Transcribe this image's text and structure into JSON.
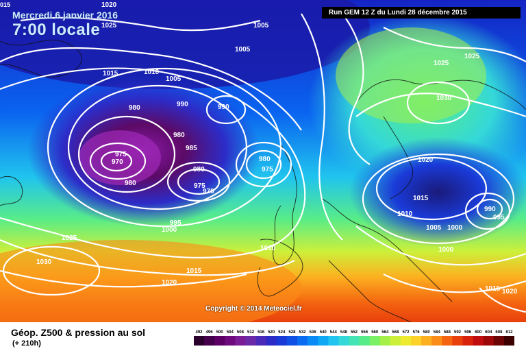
{
  "header": {
    "date": "Mercredi 6 janvier 2016",
    "time": "7:00 locale",
    "run": "Run GEM 12 Z du Lundi 28 décembre 2015",
    "corner_label": "015"
  },
  "footer": {
    "title": "Géop. Z500 & pression au sol",
    "forecast": "(+ 210h)",
    "copyright": "Copyright © 2014 Meteociel.fr"
  },
  "scale": {
    "values": [
      "492",
      "496",
      "500",
      "504",
      "508",
      "512",
      "516",
      "520",
      "524",
      "528",
      "532",
      "536",
      "540",
      "544",
      "548",
      "552",
      "556",
      "560",
      "564",
      "568",
      "572",
      "576",
      "580",
      "584",
      "588",
      "592",
      "596",
      "600",
      "604",
      "608",
      "612"
    ],
    "colors": [
      "#2b002b",
      "#44004a",
      "#5c0066",
      "#6e0a7d",
      "#7a1c95",
      "#6a2aa8",
      "#4a2ab8",
      "#2c2cc8",
      "#1a3ad8",
      "#1050e4",
      "#0a6cf0",
      "#0a8af4",
      "#10a8f4",
      "#20c4ee",
      "#34d8d8",
      "#44e4b4",
      "#58ec88",
      "#7af064",
      "#a4f048",
      "#ccf03a",
      "#eeea30",
      "#fcd228",
      "#fcb020",
      "#fc8c18",
      "#f46410",
      "#e8400c",
      "#d8220a",
      "#c00c0c",
      "#9c0808",
      "#6c0404",
      "#3c0000"
    ]
  },
  "isobars": [
    {
      "text": "1020"
    },
    {
      "text": "1025"
    },
    {
      "text": "1005"
    },
    {
      "text": "1005"
    },
    {
      "text": "1015"
    },
    {
      "text": "1010"
    },
    {
      "text": "1005"
    },
    {
      "text": "980"
    },
    {
      "text": "990"
    },
    {
      "text": "990"
    },
    {
      "text": "980"
    },
    {
      "text": "985"
    },
    {
      "text": "975"
    },
    {
      "text": "970"
    },
    {
      "text": "980"
    },
    {
      "text": "980"
    },
    {
      "text": "975"
    },
    {
      "text": "970"
    },
    {
      "text": "980"
    },
    {
      "text": "975"
    },
    {
      "text": "995"
    },
    {
      "text": "1000"
    },
    {
      "text": "1025"
    },
    {
      "text": "1030"
    },
    {
      "text": "1015"
    },
    {
      "text": "1020"
    },
    {
      "text": "1010"
    },
    {
      "text": "1025"
    },
    {
      "text": "1025"
    },
    {
      "text": "1030"
    },
    {
      "text": "1020"
    },
    {
      "text": "1015"
    },
    {
      "text": "1010"
    },
    {
      "text": "1005"
    },
    {
      "text": "1000"
    },
    {
      "text": "990"
    },
    {
      "text": "995"
    },
    {
      "text": "1000"
    },
    {
      "text": "1015"
    },
    {
      "text": "1020"
    }
  ]
}
